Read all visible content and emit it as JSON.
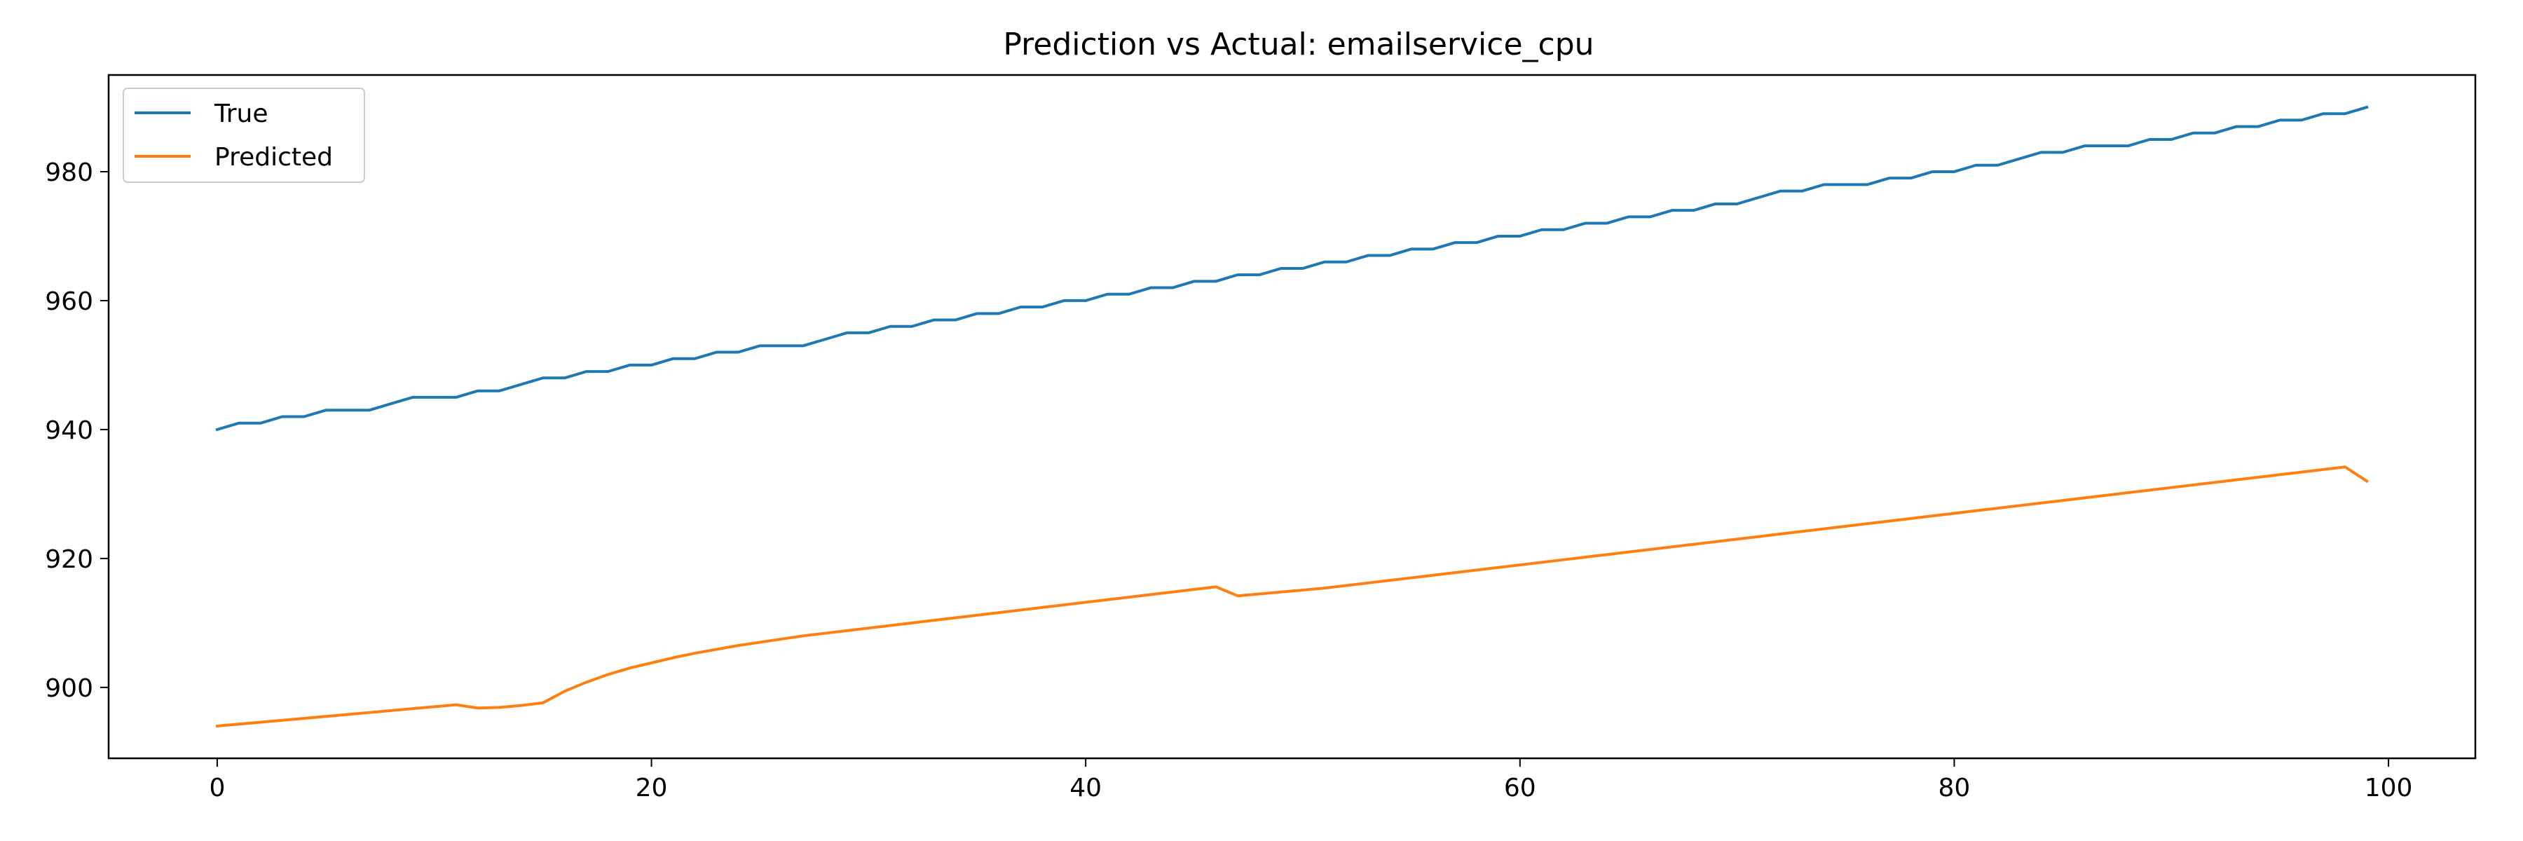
{
  "chart_data": {
    "type": "line",
    "title": "Prediction vs Actual: emailservice_cpu",
    "xlabel": "",
    "ylabel": "",
    "xlim": [
      -5,
      104
    ],
    "ylim": [
      889,
      995
    ],
    "xticks": [
      0,
      20,
      40,
      60,
      80,
      100
    ],
    "yticks": [
      900,
      920,
      940,
      960,
      980
    ],
    "grid": false,
    "legend_position": "top-left",
    "series": [
      {
        "name": "True",
        "color": "#1f77b4",
        "x": [
          0,
          1,
          2,
          3,
          4,
          5,
          6,
          7,
          8,
          9,
          10,
          11,
          12,
          13,
          14,
          15,
          16,
          17,
          18,
          19,
          20,
          21,
          22,
          23,
          24,
          25,
          26,
          27,
          28,
          29,
          30,
          31,
          32,
          33,
          34,
          35,
          36,
          37,
          38,
          39,
          40,
          41,
          42,
          43,
          44,
          45,
          46,
          47,
          48,
          49,
          50,
          51,
          52,
          53,
          54,
          55,
          56,
          57,
          58,
          59,
          60,
          61,
          62,
          63,
          64,
          65,
          66,
          67,
          68,
          69,
          70,
          71,
          72,
          73,
          74,
          75,
          76,
          77,
          78,
          79,
          80,
          81,
          82,
          83,
          84,
          85,
          86,
          87,
          88,
          89,
          90,
          91,
          92,
          93,
          94,
          95,
          96,
          97,
          98,
          99
        ],
        "y": [
          940,
          941,
          941,
          942,
          942,
          943,
          943,
          943,
          944,
          945,
          945,
          945,
          946,
          946,
          947,
          948,
          948,
          949,
          949,
          950,
          950,
          951,
          951,
          952,
          952,
          953,
          953,
          953,
          954,
          955,
          955,
          956,
          956,
          957,
          957,
          958,
          958,
          959,
          959,
          960,
          960,
          961,
          961,
          962,
          962,
          963,
          963,
          964,
          964,
          965,
          965,
          966,
          966,
          967,
          967,
          968,
          968,
          969,
          969,
          970,
          970,
          971,
          971,
          972,
          972,
          973,
          973,
          974,
          974,
          975,
          975,
          976,
          977,
          977,
          978,
          978,
          978,
          979,
          979,
          980,
          980,
          981,
          981,
          982,
          983,
          983,
          984,
          984,
          984,
          985,
          985,
          986,
          986,
          987,
          987,
          988,
          988,
          989,
          989,
          990
        ]
      },
      {
        "name": "Predicted",
        "color": "#ff7f0e",
        "x": [
          0,
          1,
          2,
          3,
          4,
          5,
          6,
          7,
          8,
          9,
          10,
          11,
          12,
          13,
          14,
          15,
          16,
          17,
          18,
          19,
          20,
          21,
          22,
          23,
          24,
          25,
          26,
          27,
          28,
          29,
          30,
          31,
          32,
          33,
          34,
          35,
          36,
          37,
          38,
          39,
          40,
          41,
          42,
          43,
          44,
          45,
          46,
          47,
          48,
          49,
          50,
          51,
          52,
          53,
          54,
          55,
          56,
          57,
          58,
          59,
          60,
          61,
          62,
          63,
          64,
          65,
          66,
          67,
          68,
          69,
          70,
          71,
          72,
          73,
          74,
          75,
          76,
          77,
          78,
          79,
          80,
          81,
          82,
          83,
          84,
          85,
          86,
          87,
          88,
          89,
          90,
          91,
          92,
          93,
          94,
          95,
          96,
          97,
          98,
          99
        ],
        "y": [
          894.0,
          894.3,
          894.6,
          894.9,
          895.2,
          895.5,
          895.8,
          896.1,
          896.4,
          896.7,
          897.0,
          897.3,
          896.8,
          896.9,
          897.2,
          897.6,
          899.4,
          900.8,
          902.0,
          903.0,
          903.8,
          904.6,
          905.3,
          905.9,
          906.5,
          907.0,
          907.5,
          908.0,
          908.4,
          908.8,
          909.2,
          909.6,
          910.0,
          910.4,
          910.8,
          911.2,
          911.6,
          912.0,
          912.4,
          912.8,
          913.2,
          913.6,
          914.0,
          914.4,
          914.8,
          915.2,
          915.6,
          914.2,
          914.5,
          914.8,
          915.1,
          915.4,
          915.8,
          916.2,
          916.6,
          917.0,
          917.4,
          917.8,
          918.2,
          918.6,
          919.0,
          919.4,
          919.8,
          920.2,
          920.6,
          921.0,
          921.4,
          921.8,
          922.2,
          922.6,
          923.0,
          923.4,
          923.8,
          924.2,
          924.6,
          925.0,
          925.4,
          925.8,
          926.2,
          926.6,
          927.0,
          927.4,
          927.8,
          928.2,
          928.6,
          929.0,
          929.4,
          929.8,
          930.2,
          930.6,
          931.0,
          931.4,
          931.8,
          932.2,
          932.6,
          933.0,
          933.4,
          933.8,
          934.2,
          932.0
        ]
      }
    ]
  }
}
